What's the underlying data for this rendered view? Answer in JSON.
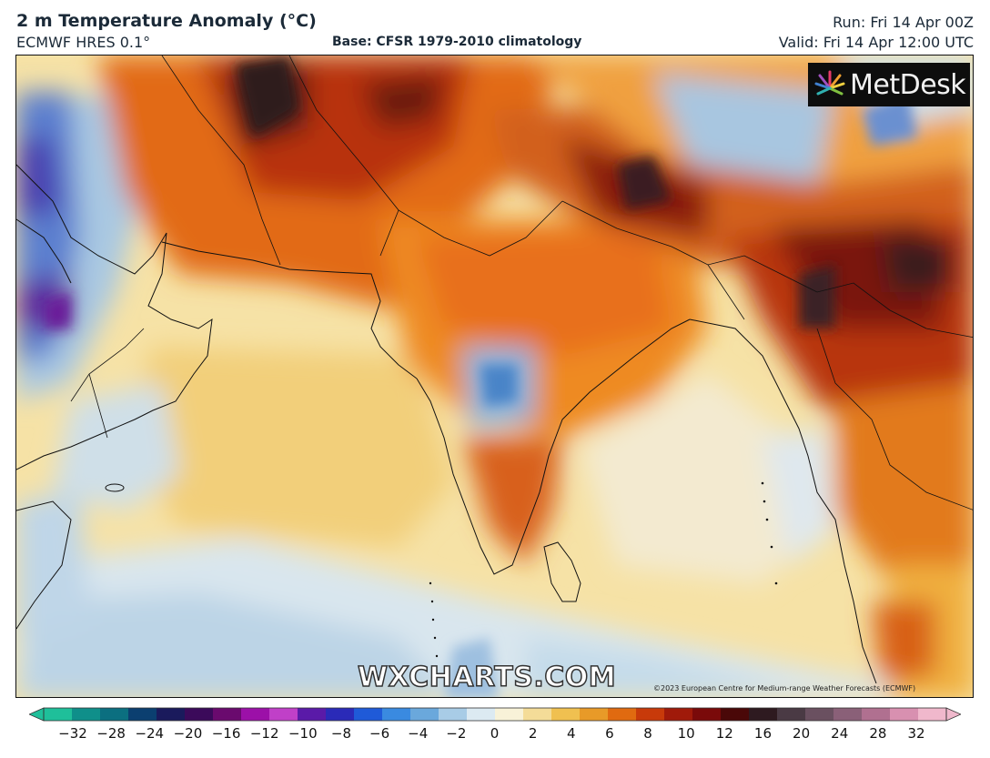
{
  "header": {
    "title": "2 m Temperature Anomaly (°C)",
    "model": "ECMWF HRES 0.1°",
    "base": "Base: CFSR 1979-2010 climatology",
    "run": "Run: Fri 14 Apr 00Z",
    "valid": "Valid: Fri 14 Apr 12:00 UTC"
  },
  "logo": {
    "text": "MetDesk",
    "icon": "metdesk-sunburst-icon"
  },
  "watermark": "WXCHARTS.COM",
  "copyright": "©2023 European Centre for Medium-range Weather Forecasts (ECMWF)",
  "colorbar": {
    "ticks": [
      "−32",
      "−28",
      "−24",
      "−20",
      "−16",
      "−12",
      "−10",
      "−8",
      "−6",
      "−4",
      "−2",
      "0",
      "2",
      "4",
      "6",
      "8",
      "10",
      "12",
      "16",
      "20",
      "24",
      "28",
      "32"
    ],
    "colors": [
      "#1fbf9a",
      "#0f8f8a",
      "#0b6f80",
      "#0b3f70",
      "#1a1a5c",
      "#3b0a5a",
      "#6a0a6e",
      "#9c10a8",
      "#c040c8",
      "#5a1aa8",
      "#2a2ab8",
      "#1f5ad8",
      "#3a8ae0",
      "#6aa8dc",
      "#a8cce6",
      "#dceaf2",
      "#f8f2d8",
      "#f4dc98",
      "#f0c050",
      "#e89a28",
      "#e06a10",
      "#c83a0a",
      "#a01a0a",
      "#7a0a0a",
      "#4a0808",
      "#2e1a20",
      "#4a3a44",
      "#6a5060",
      "#8a6078",
      "#b07090",
      "#d890b0",
      "#f0b8cc"
    ]
  },
  "map": {
    "region": "South Asia / Arabian Sea / Bay of Bengal"
  }
}
